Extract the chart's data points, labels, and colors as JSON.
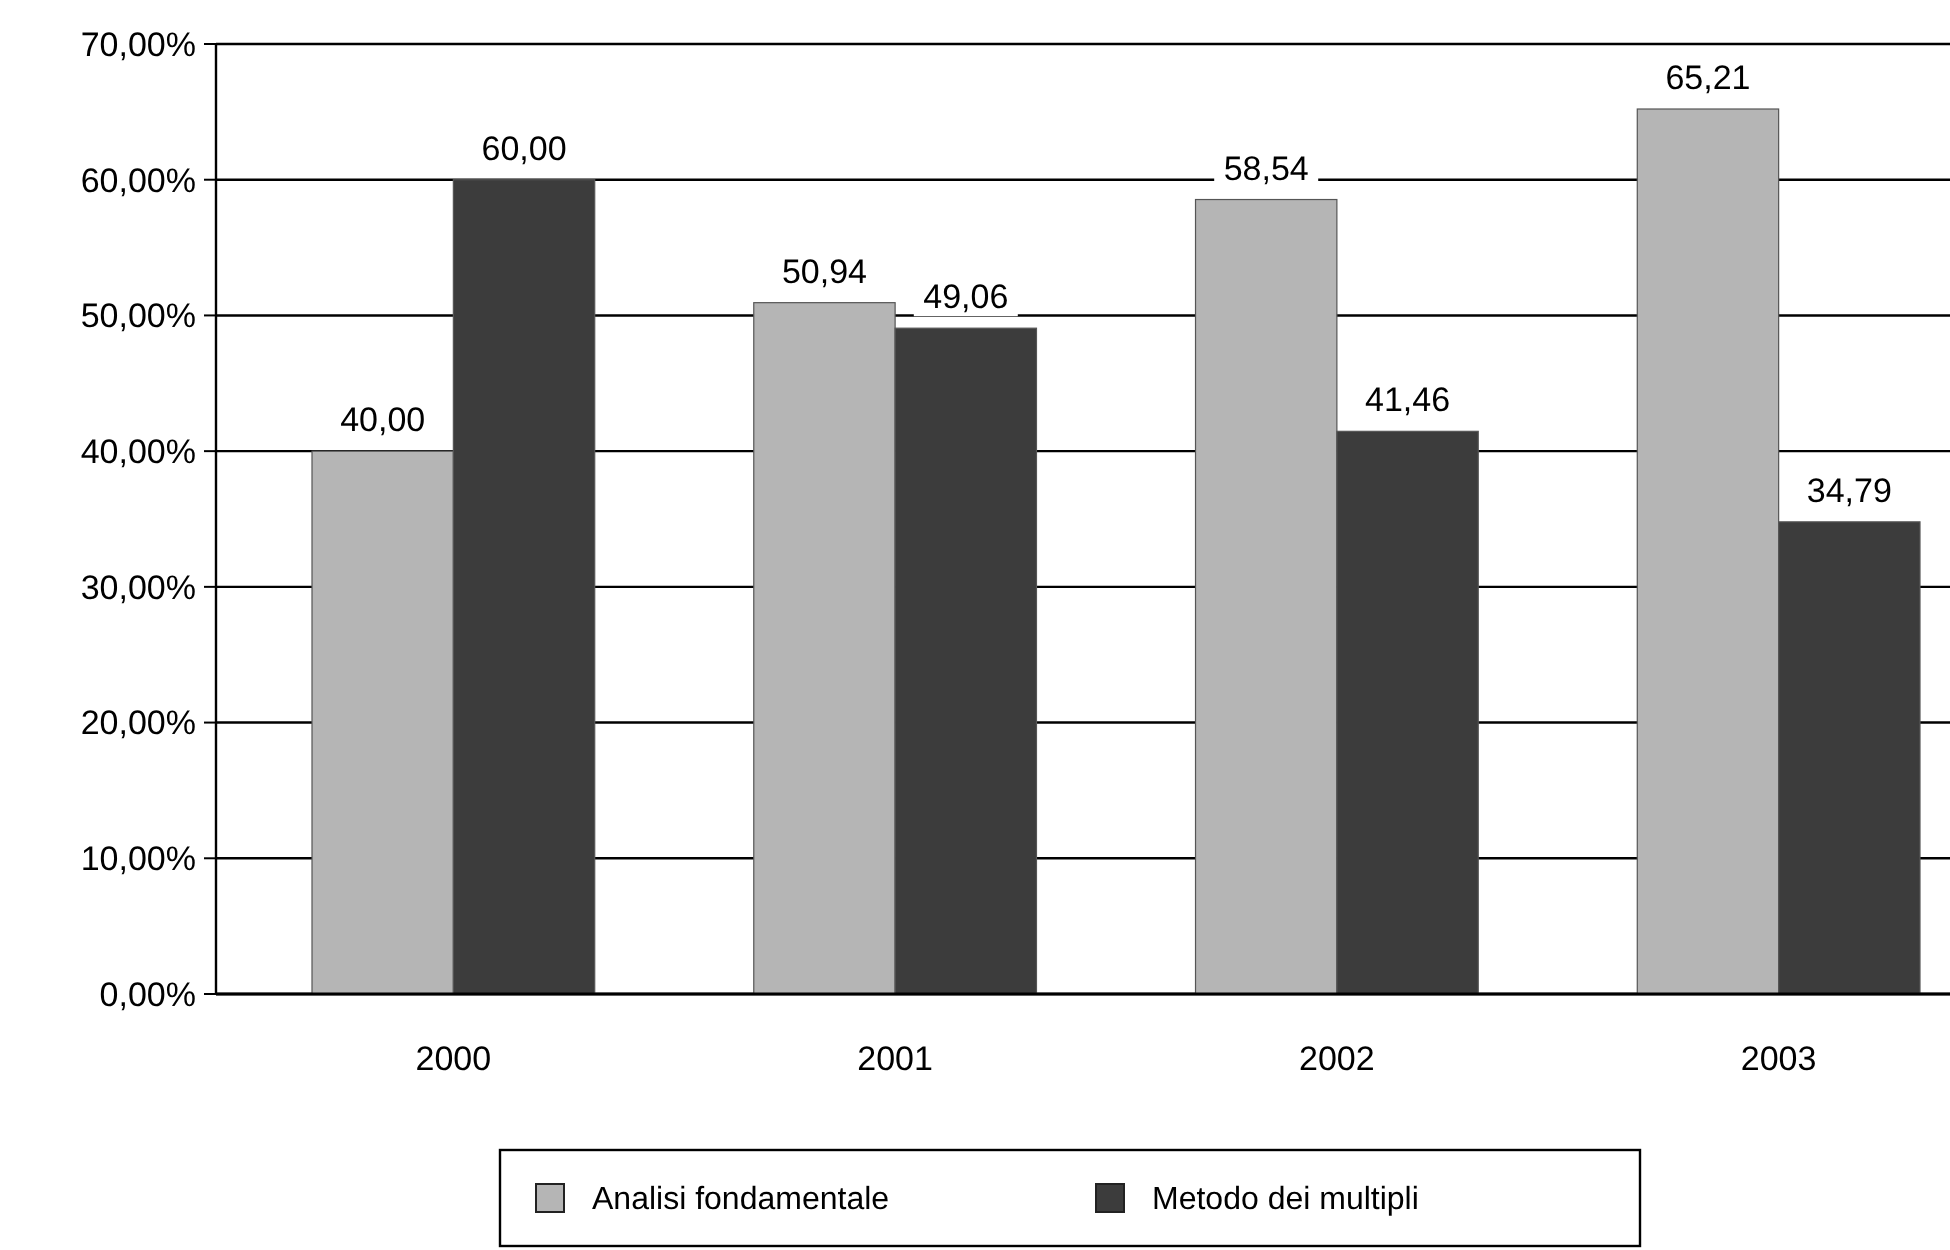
{
  "chart_data": {
    "type": "bar",
    "categories": [
      "2000",
      "2001",
      "2002",
      "2003"
    ],
    "series": [
      {
        "name": "Analisi fondamentale",
        "color": "#b5b5b5",
        "values": [
          40.0,
          50.94,
          58.54,
          65.21
        ],
        "value_labels": [
          "40,00",
          "50,94",
          "58,54",
          "65,21"
        ]
      },
      {
        "name": "Metodo dei multipli",
        "color": "#3c3c3c",
        "values": [
          60.0,
          49.06,
          41.46,
          34.79
        ],
        "value_labels": [
          "60,00",
          "49,06",
          "41,46",
          "34,79"
        ]
      }
    ],
    "ylim": [
      0,
      70
    ],
    "yticks": [
      {
        "value": 0,
        "label": "0,00%"
      },
      {
        "value": 10,
        "label": "10,00%"
      },
      {
        "value": 20,
        "label": "20,00%"
      },
      {
        "value": 30,
        "label": "30,00%"
      },
      {
        "value": 40,
        "label": "40,00%"
      },
      {
        "value": 50,
        "label": "50,00%"
      },
      {
        "value": 60,
        "label": "60,00%"
      },
      {
        "value": 70,
        "label": "70,00%"
      }
    ],
    "grid": "y",
    "legend": "bottom"
  }
}
